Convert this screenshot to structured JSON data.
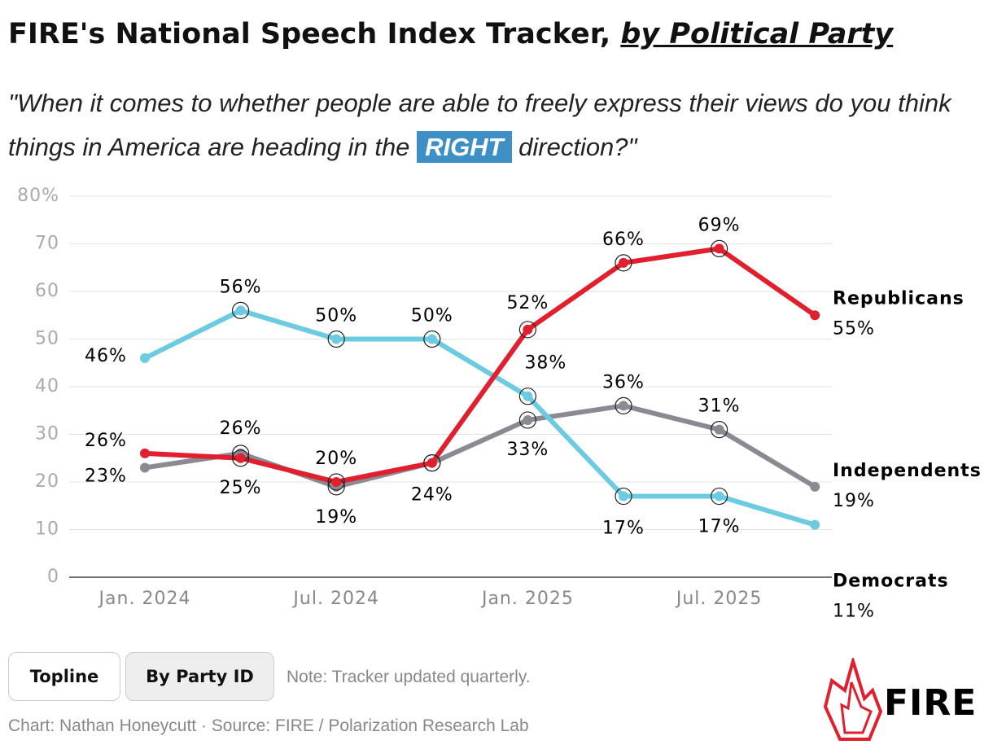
{
  "chart_data": {
    "type": "line",
    "title": "FIRE's National Speech Index Tracker,",
    "title_emphasis": "by Political Party",
    "subtitle_before": "\"When it comes to whether people are able to freely express their views do you think things in America are heading in the",
    "subtitle_highlight": "RIGHT",
    "subtitle_after": "direction?\"",
    "categories": [
      "Jan. 2024",
      null,
      "Jul. 2024",
      null,
      "Jan. 2025",
      null,
      "Jul. 2025",
      null
    ],
    "ylim": [
      0,
      80
    ],
    "yticks": [
      0,
      10,
      20,
      30,
      40,
      50,
      60,
      70,
      {
        "value": 80,
        "label": "80%"
      }
    ],
    "grid": true,
    "series": [
      {
        "name": "Democrats",
        "color": "#6ccbe0",
        "values": [
          46,
          56,
          50,
          50,
          38,
          17,
          17,
          11
        ],
        "value_labels": [
          "46%",
          "56%",
          "50%",
          "50%",
          "38%",
          "17%",
          "17%",
          "11%"
        ]
      },
      {
        "name": "Republicans",
        "color": "#e0202e",
        "values": [
          26,
          25,
          20,
          24,
          52,
          66,
          69,
          55
        ],
        "value_labels": [
          "26%",
          "25%",
          "20%",
          "24%",
          "52%",
          "66%",
          "69%",
          "55%"
        ]
      },
      {
        "name": "Independents",
        "color": "#8a8a93",
        "values": [
          23,
          26,
          19,
          24,
          33,
          36,
          31,
          19
        ],
        "value_labels": [
          "23%",
          "26%",
          "19%",
          null,
          "33%",
          "36%",
          "31%",
          "19%"
        ]
      }
    ]
  },
  "controls": {
    "buttons": [
      "Topline",
      "By Party ID"
    ],
    "note": "Note: Tracker updated quarterly."
  },
  "footer": {
    "credit": "Chart: Nathan Honeycutt · Source: FIRE / Polarization Research Lab",
    "logo": "FIRE"
  }
}
